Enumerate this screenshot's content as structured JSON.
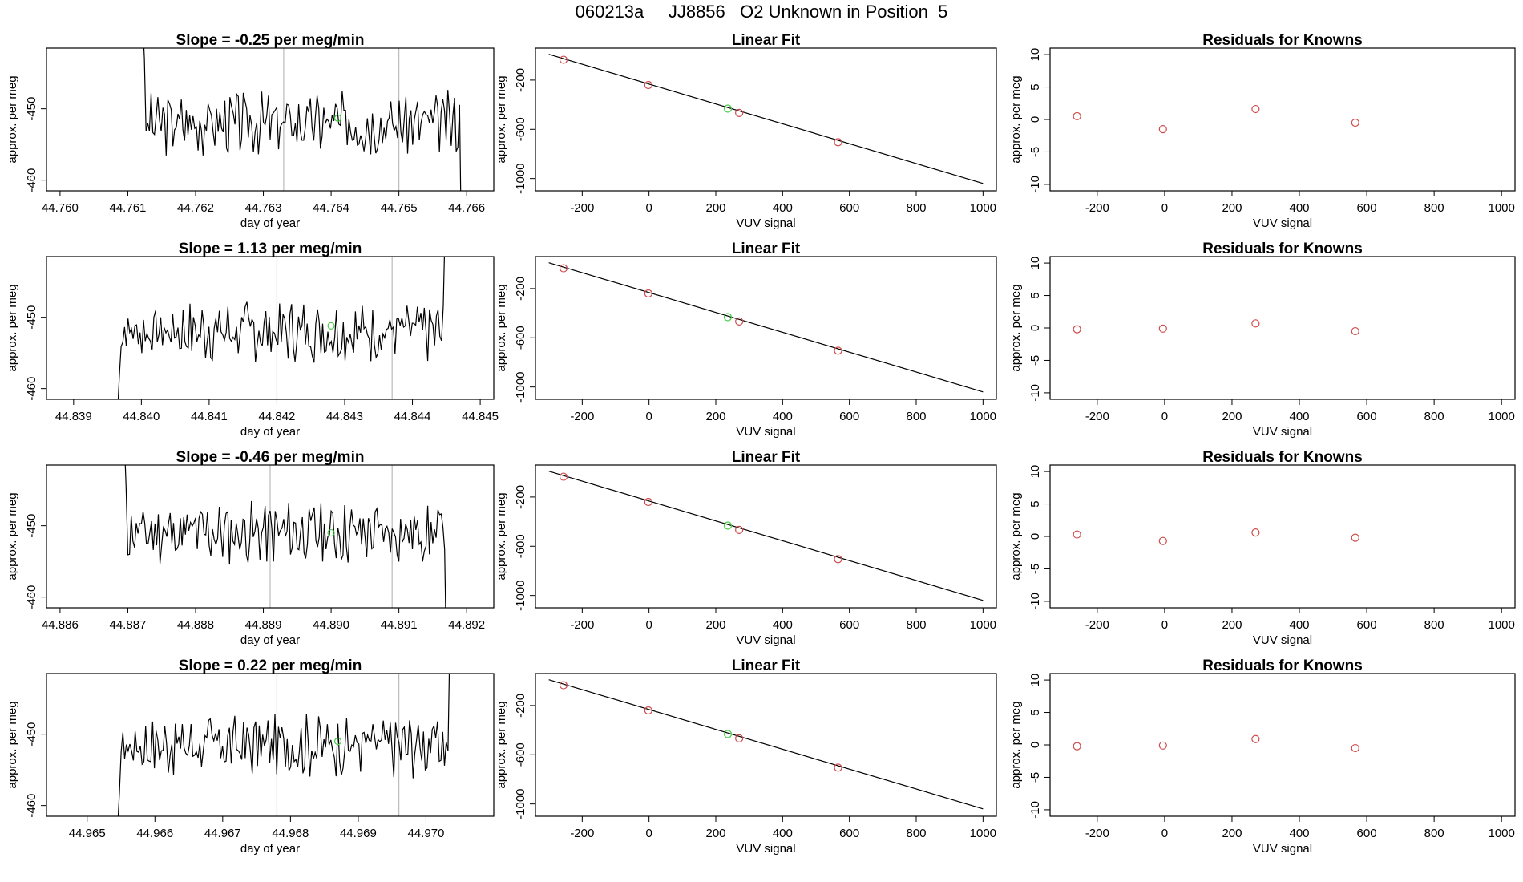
{
  "figure_title": "060213a     JJ8856   O2 Unknown in Position  5",
  "colors": {
    "line": "#000000",
    "known_point": "#d04a4a",
    "unknown_point": "#44cc44",
    "vline": "#bbbbbb"
  },
  "chart_data": [
    {
      "type": "line",
      "title": "Slope =  -0.25  per meg/min",
      "xlabel": "day of year",
      "ylabel": "approx. per meg",
      "xlim": [
        44.7598,
        44.7664
      ],
      "ylim": [
        -461.5,
        -441.5
      ],
      "xticks": [
        "44.760",
        "44.761",
        "44.762",
        "44.763",
        "44.764",
        "44.765",
        "44.766"
      ],
      "yticks": [
        "-450",
        "-460"
      ],
      "vlines": [
        44.7633,
        44.765
      ],
      "marker": {
        "x": 44.7641,
        "y": -451.3
      },
      "curve": {
        "start": 44.76122,
        "end": 44.76592,
        "base": -452,
        "entry": -438,
        "exit": -468,
        "seed": 3
      }
    },
    {
      "type": "scatter",
      "title": "Linear Fit",
      "xlabel": "VUV signal",
      "ylabel": "approx. per meg",
      "xlim": [
        -340,
        1040
      ],
      "ylim": [
        -1100,
        60
      ],
      "xticks": [
        "-200",
        "0",
        "200",
        "400",
        "600",
        "800",
        "1000"
      ],
      "yticks": [
        "-200",
        "-600",
        "-1000"
      ],
      "fit_line": {
        "x0": -300,
        "y0": 10,
        "x1": 1000,
        "y1": -1040
      },
      "points": [
        {
          "x": -256,
          "y": -35
        },
        {
          "x": -2,
          "y": -240
        },
        {
          "x": 270,
          "y": -467
        },
        {
          "x": 566,
          "y": -705
        }
      ],
      "unknown_point": {
        "x": 236,
        "y": -432
      }
    },
    {
      "type": "scatter",
      "title": "Residuals for Knowns",
      "xlabel": "VUV signal",
      "ylabel": "approx. per meg",
      "xlim": [
        -340,
        1040
      ],
      "ylim": [
        -11,
        11
      ],
      "xticks": [
        "-200",
        "0",
        "200",
        "400",
        "600",
        "800",
        "1000"
      ],
      "yticks": [
        "10",
        "5",
        "0",
        "-5",
        "-10"
      ],
      "points": [
        {
          "x": -260,
          "y": 0.5
        },
        {
          "x": -5,
          "y": -1.5
        },
        {
          "x": 270,
          "y": 1.6
        },
        {
          "x": 566,
          "y": -0.5
        }
      ]
    },
    {
      "type": "line",
      "title": "Slope =  1.13  per meg/min",
      "xlabel": "day of year",
      "ylabel": "approx. per meg",
      "xlim": [
        44.8386,
        44.8452
      ],
      "ylim": [
        -461.5,
        -441.5
      ],
      "xticks": [
        "44.839",
        "44.840",
        "44.841",
        "44.842",
        "44.843",
        "44.844",
        "44.845"
      ],
      "yticks": [
        "-450",
        "-460"
      ],
      "vlines": [
        44.842,
        44.8437
      ],
      "marker": {
        "x": 44.8428,
        "y": -451.2
      },
      "curve": {
        "start": 44.83965,
        "end": 44.84448,
        "base": -452,
        "entry": -463,
        "exit": -438,
        "seed": 7
      }
    },
    {
      "type": "scatter",
      "title": "Linear Fit",
      "xlabel": "VUV signal",
      "ylabel": "approx. per meg",
      "xlim": [
        -340,
        1040
      ],
      "ylim": [
        -1100,
        60
      ],
      "xticks": [
        "-200",
        "0",
        "200",
        "400",
        "600",
        "800",
        "1000"
      ],
      "yticks": [
        "-200",
        "-600",
        "-1000"
      ],
      "fit_line": {
        "x0": -300,
        "y0": 10,
        "x1": 1000,
        "y1": -1040
      },
      "points": [
        {
          "x": -256,
          "y": -35
        },
        {
          "x": -2,
          "y": -240
        },
        {
          "x": 270,
          "y": -467
        },
        {
          "x": 566,
          "y": -705
        }
      ],
      "unknown_point": {
        "x": 236,
        "y": -432
      }
    },
    {
      "type": "scatter",
      "title": "Residuals for Knowns",
      "xlabel": "VUV signal",
      "ylabel": "approx. per meg",
      "xlim": [
        -340,
        1040
      ],
      "ylim": [
        -11,
        11
      ],
      "xticks": [
        "-200",
        "0",
        "200",
        "400",
        "600",
        "800",
        "1000"
      ],
      "yticks": [
        "10",
        "5",
        "0",
        "-5",
        "-10"
      ],
      "points": [
        {
          "x": -260,
          "y": -0.2
        },
        {
          "x": -5,
          "y": -0.1
        },
        {
          "x": 270,
          "y": 0.7
        },
        {
          "x": 566,
          "y": -0.5
        }
      ]
    },
    {
      "type": "line",
      "title": "Slope =  -0.46  per meg/min",
      "xlabel": "day of year",
      "ylabel": "approx. per meg",
      "xlim": [
        44.8858,
        44.8924
      ],
      "ylim": [
        -461.5,
        -441.5
      ],
      "xticks": [
        "44.886",
        "44.887",
        "44.888",
        "44.889",
        "44.890",
        "44.891",
        "44.892"
      ],
      "yticks": [
        "-450",
        "-460"
      ],
      "vlines": [
        44.8891,
        44.8909
      ],
      "marker": {
        "x": 44.89,
        "y": -451.0
      },
      "curve": {
        "start": 44.88695,
        "end": 44.8917,
        "base": -451,
        "entry": -438,
        "exit": -468,
        "seed": 11
      }
    },
    {
      "type": "scatter",
      "title": "Linear Fit",
      "xlabel": "VUV signal",
      "ylabel": "approx. per meg",
      "xlim": [
        -340,
        1040
      ],
      "ylim": [
        -1100,
        60
      ],
      "xticks": [
        "-200",
        "0",
        "200",
        "400",
        "600",
        "800",
        "1000"
      ],
      "yticks": [
        "-200",
        "-600",
        "-1000"
      ],
      "fit_line": {
        "x0": -300,
        "y0": 10,
        "x1": 1000,
        "y1": -1040
      },
      "points": [
        {
          "x": -256,
          "y": -35
        },
        {
          "x": -2,
          "y": -240
        },
        {
          "x": 270,
          "y": -467
        },
        {
          "x": 566,
          "y": -705
        }
      ],
      "unknown_point": {
        "x": 236,
        "y": -432
      }
    },
    {
      "type": "scatter",
      "title": "Residuals for Knowns",
      "xlabel": "VUV signal",
      "ylabel": "approx. per meg",
      "xlim": [
        -340,
        1040
      ],
      "ylim": [
        -11,
        11
      ],
      "xticks": [
        "-200",
        "0",
        "200",
        "400",
        "600",
        "800",
        "1000"
      ],
      "yticks": [
        "10",
        "5",
        "0",
        "-5",
        "-10"
      ],
      "points": [
        {
          "x": -260,
          "y": 0.3
        },
        {
          "x": -5,
          "y": -0.7
        },
        {
          "x": 270,
          "y": 0.6
        },
        {
          "x": 566,
          "y": -0.2
        }
      ]
    },
    {
      "type": "line",
      "title": "Slope =  0.22  per meg/min",
      "xlabel": "day of year",
      "ylabel": "approx. per meg",
      "xlim": [
        44.9644,
        44.971
      ],
      "ylim": [
        -461.5,
        -441.5
      ],
      "xticks": [
        "44.965",
        "44.966",
        "44.967",
        "44.968",
        "44.969",
        "44.970"
      ],
      "yticks": [
        "-450",
        "-460"
      ],
      "vlines": [
        44.9678,
        44.9696
      ],
      "marker": {
        "x": 44.9687,
        "y": -451.0
      },
      "curve": {
        "start": 44.96545,
        "end": 44.97035,
        "base": -451.5,
        "entry": -463,
        "exit": -438,
        "seed": 17
      }
    },
    {
      "type": "scatter",
      "title": "Linear Fit",
      "xlabel": "VUV signal",
      "ylabel": "approx. per meg",
      "xlim": [
        -340,
        1040
      ],
      "ylim": [
        -1100,
        60
      ],
      "xticks": [
        "-200",
        "0",
        "200",
        "400",
        "600",
        "800",
        "1000"
      ],
      "yticks": [
        "-200",
        "-600",
        "-1000"
      ],
      "fit_line": {
        "x0": -300,
        "y0": 10,
        "x1": 1000,
        "y1": -1040
      },
      "points": [
        {
          "x": -256,
          "y": -35
        },
        {
          "x": -2,
          "y": -240
        },
        {
          "x": 270,
          "y": -467
        },
        {
          "x": 566,
          "y": -705
        }
      ],
      "unknown_point": {
        "x": 236,
        "y": -432
      }
    },
    {
      "type": "scatter",
      "title": "Residuals for Knowns",
      "xlabel": "VUV signal",
      "ylabel": "approx. per meg",
      "xlim": [
        -340,
        1040
      ],
      "ylim": [
        -11,
        11
      ],
      "xticks": [
        "-200",
        "0",
        "200",
        "400",
        "600",
        "800",
        "1000"
      ],
      "yticks": [
        "10",
        "5",
        "0",
        "-5",
        "-10"
      ],
      "points": [
        {
          "x": -260,
          "y": -0.2
        },
        {
          "x": -5,
          "y": -0.1
        },
        {
          "x": 270,
          "y": 0.9
        },
        {
          "x": 566,
          "y": -0.5
        }
      ]
    }
  ]
}
